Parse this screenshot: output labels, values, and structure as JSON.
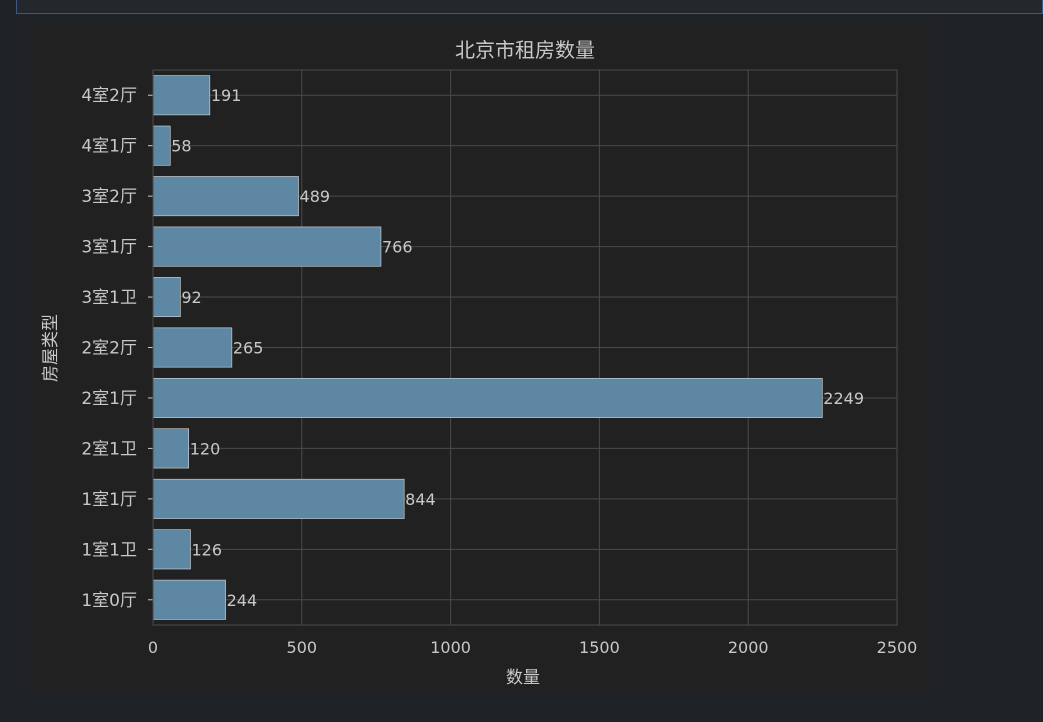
{
  "chart_data": {
    "type": "bar",
    "orientation": "horizontal",
    "title": "北京市租房数量",
    "xlabel": "数量",
    "ylabel": "房屋类型",
    "categories": [
      "1室0厅",
      "1室1卫",
      "1室1厅",
      "2室1卫",
      "2室1厅",
      "2室2厅",
      "3室1卫",
      "3室1厅",
      "3室2厅",
      "4室1厅",
      "4室2厅"
    ],
    "values": [
      244,
      126,
      844,
      120,
      2249,
      265,
      92,
      766,
      489,
      58,
      191
    ],
    "xlim": [
      0,
      2500
    ],
    "xticks": [
      0,
      500,
      1000,
      1500,
      2000,
      2500
    ],
    "grid": true,
    "bar_color": "#5e87a4"
  }
}
